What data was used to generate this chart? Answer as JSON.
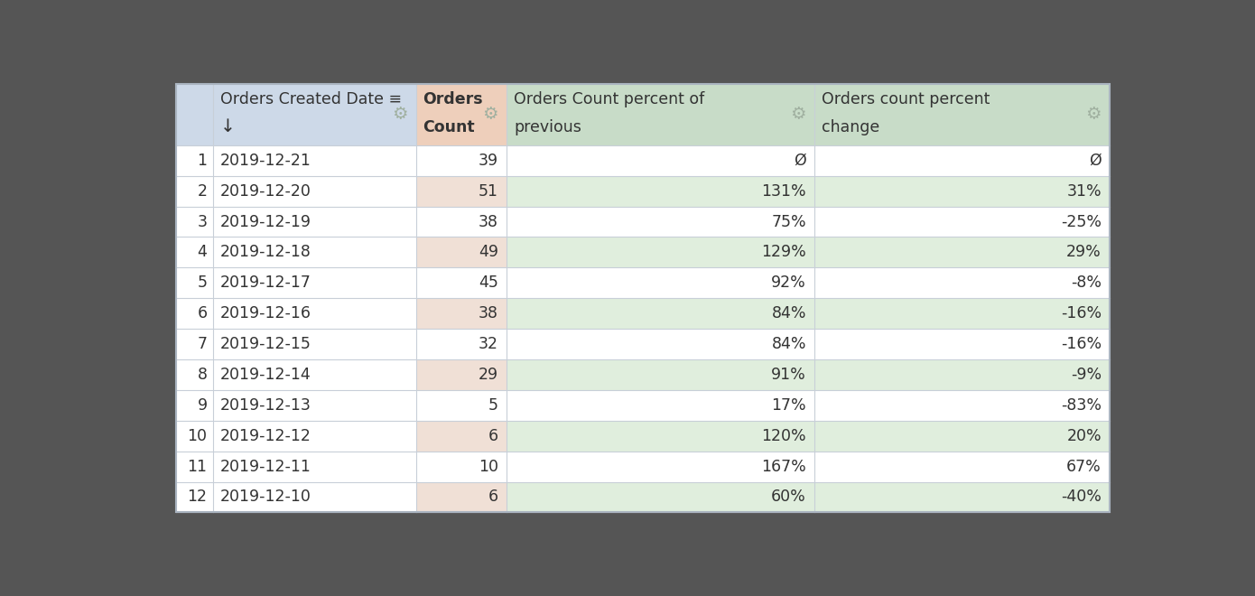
{
  "background_color": "#555555",
  "col_header_colors": {
    "row_num": "#cdd9e8",
    "date": "#cdd9e8",
    "orders_count": "#eecfbb",
    "percent_of_prev": "#c8dcc8",
    "percent_change": "#c8dcc8"
  },
  "row_stripe_colors": {
    "orders_even": "#f0e0d6",
    "orders_odd": "#ffffff",
    "prev_even": "#e0eedd",
    "prev_odd": "#ffffff",
    "change_even": "#e0eedd",
    "change_odd": "#ffffff",
    "date_even": "#ffffff",
    "date_odd": "#ffffff"
  },
  "rows": [
    {
      "num": 1,
      "date": "2019-12-21",
      "orders": "39",
      "prev": "Ø",
      "change": "Ø"
    },
    {
      "num": 2,
      "date": "2019-12-20",
      "orders": "51",
      "prev": "131%",
      "change": "31%"
    },
    {
      "num": 3,
      "date": "2019-12-19",
      "orders": "38",
      "prev": "75%",
      "change": "-25%"
    },
    {
      "num": 4,
      "date": "2019-12-18",
      "orders": "49",
      "prev": "129%",
      "change": "29%"
    },
    {
      "num": 5,
      "date": "2019-12-17",
      "orders": "45",
      "prev": "92%",
      "change": "-8%"
    },
    {
      "num": 6,
      "date": "2019-12-16",
      "orders": "38",
      "prev": "84%",
      "change": "-16%"
    },
    {
      "num": 7,
      "date": "2019-12-15",
      "orders": "32",
      "prev": "84%",
      "change": "-16%"
    },
    {
      "num": 8,
      "date": "2019-12-14",
      "orders": "29",
      "prev": "91%",
      "change": "-9%"
    },
    {
      "num": 9,
      "date": "2019-12-13",
      "orders": "5",
      "prev": "17%",
      "change": "-83%"
    },
    {
      "num": 10,
      "date": "2019-12-12",
      "orders": "6",
      "prev": "120%",
      "change": "20%"
    },
    {
      "num": 11,
      "date": "2019-12-11",
      "orders": "10",
      "prev": "167%",
      "change": "67%"
    },
    {
      "num": 12,
      "date": "2019-12-10",
      "orders": "6",
      "prev": "60%",
      "change": "-40%"
    }
  ],
  "font_size": 12.5,
  "header_font_size": 12.5,
  "text_color": "#333333",
  "gear_color": "#a0b0a0",
  "line_color": "#c8cfd8",
  "border_color": "#aab4c0"
}
